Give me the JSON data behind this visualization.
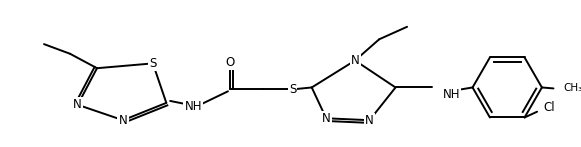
{
  "bg": "#ffffff",
  "lc": "#000000",
  "lw": 1.4,
  "fs": 8.5,
  "figsize": [
    5.81,
    1.47
  ],
  "dpi": 100,
  "xlim": [
    0,
    581
  ],
  "ylim": [
    0,
    147
  ]
}
